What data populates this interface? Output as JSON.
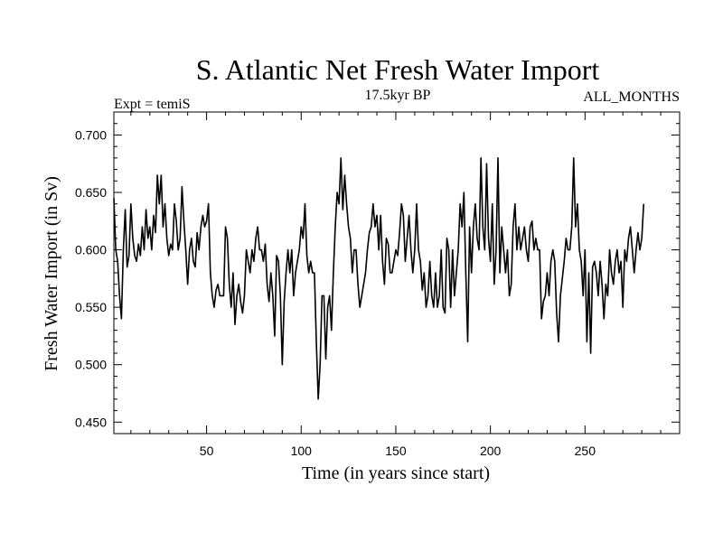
{
  "chart_data": {
    "type": "line",
    "title": "S. Atlantic Net Fresh Water Import",
    "subtitle_left": "Expt = temiS",
    "subtitle_center": "17.5kyr BP",
    "subtitle_right": "ALL_MONTHS",
    "xlabel": "Time (in years since start)",
    "ylabel": "Fresh Water Import (in Sv)",
    "xlim": [
      1,
      300
    ],
    "ylim": [
      0.44,
      0.72
    ],
    "xticks": [
      50,
      100,
      150,
      200,
      250
    ],
    "xtick_labels": [
      "50",
      "100",
      "150",
      "200",
      "250"
    ],
    "yticks": [
      0.45,
      0.5,
      0.55,
      0.6,
      0.65,
      0.7
    ],
    "ytick_labels": [
      "0.450",
      "0.500",
      "0.550",
      "0.600",
      "0.650",
      "0.700"
    ],
    "grid": false,
    "series": [
      {
        "name": "Fresh Water Import",
        "color": "#000000",
        "x_start": 1,
        "x_step": 1,
        "values": [
          0.645,
          0.6,
          0.59,
          0.56,
          0.54,
          0.6,
          0.635,
          0.585,
          0.595,
          0.64,
          0.61,
          0.595,
          0.59,
          0.605,
          0.595,
          0.62,
          0.6,
          0.635,
          0.61,
          0.62,
          0.6,
          0.63,
          0.615,
          0.665,
          0.64,
          0.665,
          0.62,
          0.64,
          0.61,
          0.595,
          0.605,
          0.6,
          0.64,
          0.625,
          0.6,
          0.61,
          0.655,
          0.625,
          0.6,
          0.57,
          0.6,
          0.61,
          0.59,
          0.585,
          0.615,
          0.6,
          0.62,
          0.63,
          0.62,
          0.625,
          0.64,
          0.58,
          0.56,
          0.55,
          0.565,
          0.57,
          0.56,
          0.56,
          0.56,
          0.62,
          0.61,
          0.57,
          0.55,
          0.58,
          0.535,
          0.56,
          0.57,
          0.555,
          0.545,
          0.56,
          0.6,
          0.59,
          0.58,
          0.6,
          0.59,
          0.61,
          0.62,
          0.6,
          0.6,
          0.59,
          0.605,
          0.57,
          0.555,
          0.58,
          0.56,
          0.525,
          0.595,
          0.59,
          0.56,
          0.5,
          0.555,
          0.58,
          0.6,
          0.58,
          0.6,
          0.56,
          0.58,
          0.59,
          0.6,
          0.62,
          0.61,
          0.64,
          0.595,
          0.58,
          0.59,
          0.58,
          0.58,
          0.52,
          0.47,
          0.5,
          0.56,
          0.56,
          0.505,
          0.55,
          0.56,
          0.53,
          0.58,
          0.62,
          0.65,
          0.64,
          0.68,
          0.635,
          0.665,
          0.64,
          0.62,
          0.61,
          0.58,
          0.6,
          0.6,
          0.57,
          0.55,
          0.56,
          0.57,
          0.58,
          0.6,
          0.615,
          0.62,
          0.64,
          0.62,
          0.63,
          0.6,
          0.63,
          0.59,
          0.57,
          0.61,
          0.605,
          0.58,
          0.58,
          0.59,
          0.6,
          0.595,
          0.615,
          0.64,
          0.63,
          0.59,
          0.61,
          0.63,
          0.6,
          0.58,
          0.6,
          0.64,
          0.6,
          0.59,
          0.565,
          0.58,
          0.55,
          0.56,
          0.59,
          0.56,
          0.55,
          0.58,
          0.55,
          0.56,
          0.6,
          0.55,
          0.545,
          0.61,
          0.6,
          0.55,
          0.6,
          0.56,
          0.58,
          0.6,
          0.64,
          0.62,
          0.65,
          0.58,
          0.52,
          0.62,
          0.58,
          0.62,
          0.64,
          0.61,
          0.6,
          0.68,
          0.62,
          0.6,
          0.675,
          0.61,
          0.59,
          0.64,
          0.57,
          0.6,
          0.68,
          0.58,
          0.62,
          0.6,
          0.58,
          0.6,
          0.56,
          0.57,
          0.62,
          0.64,
          0.6,
          0.62,
          0.6,
          0.61,
          0.62,
          0.6,
          0.59,
          0.62,
          0.625,
          0.6,
          0.61,
          0.6,
          0.6,
          0.54,
          0.555,
          0.56,
          0.58,
          0.56,
          0.59,
          0.6,
          0.59,
          0.545,
          0.52,
          0.56,
          0.575,
          0.59,
          0.61,
          0.6,
          0.6,
          0.62,
          0.68,
          0.62,
          0.64,
          0.6,
          0.59,
          0.56,
          0.6,
          0.52,
          0.58,
          0.51,
          0.585,
          0.59,
          0.58,
          0.56,
          0.59,
          0.57,
          0.54,
          0.57,
          0.56,
          0.6,
          0.58,
          0.57,
          0.59,
          0.6,
          0.58,
          0.59,
          0.55,
          0.6,
          0.59,
          0.61,
          0.62,
          0.6,
          0.58,
          0.6,
          0.615,
          0.6,
          0.61,
          0.64
        ]
      }
    ]
  }
}
